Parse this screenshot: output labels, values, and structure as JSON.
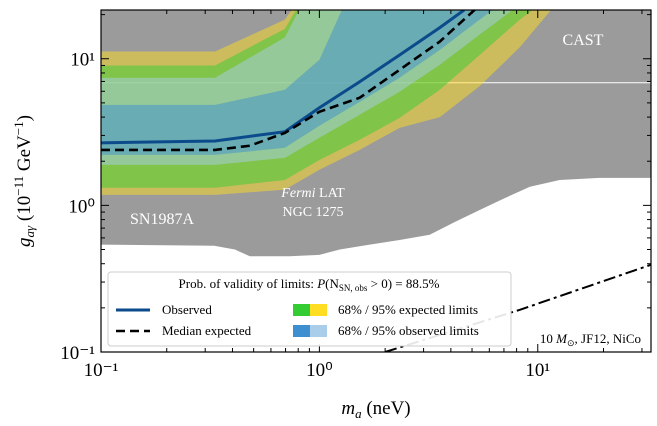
{
  "chart_data": {
    "type": "line",
    "xscale": "log",
    "yscale": "log",
    "xlim": [
      0.1,
      33
    ],
    "ylim": [
      0.1,
      21.5
    ],
    "xticks": [
      {
        "value": 0.1,
        "label": "10⁻¹"
      },
      {
        "value": 1,
        "label": "10⁰"
      },
      {
        "value": 10,
        "label": "10¹"
      }
    ],
    "yticks": [
      {
        "value": 0.1,
        "label": "10⁻¹"
      },
      {
        "value": 1,
        "label": "10⁰"
      },
      {
        "value": 10,
        "label": "10¹"
      }
    ],
    "xminorticks": [
      0.2,
      0.3,
      0.4,
      0.5,
      0.6,
      0.7,
      0.8,
      0.9,
      2,
      3,
      4,
      5,
      6,
      7,
      8,
      9,
      20,
      30
    ],
    "yminorticks": [
      0.2,
      0.3,
      0.4,
      0.5,
      0.6,
      0.7,
      0.8,
      0.9,
      2,
      3,
      4,
      5,
      6,
      7,
      8,
      9,
      20
    ],
    "xlabel": [
      "m",
      "a",
      " (neV)"
    ],
    "ylabel": [
      "g",
      "aγ",
      " (10",
      "−11",
      " GeV",
      "−1",
      ")"
    ],
    "excluded": {
      "color": "#9b9b9b",
      "x": [
        0.1,
        33,
        33,
        19.2,
        12.6,
        9.2,
        7.06,
        5.42,
        4.17,
        3.2,
        2.33,
        1.7,
        1.24,
        1.0,
        0.73,
        0.48,
        0.41,
        0.33,
        0.1
      ],
      "y": [
        21.5,
        21.5,
        1.54,
        1.54,
        1.49,
        1.34,
        1.12,
        0.93,
        0.77,
        0.63,
        0.58,
        0.54,
        0.5,
        0.46,
        0.45,
        0.45,
        0.5,
        0.53,
        0.54
      ]
    },
    "boundary": {
      "color": "#ffffff",
      "x": [
        0.1,
        33
      ],
      "y": [
        6.86,
        6.86
      ]
    },
    "region_labels": {
      "cast": "CAST",
      "sn": "SN1987A",
      "fermi": [
        "Fermi",
        " LAT"
      ],
      "fermi_source": "NGC 1275"
    },
    "band_x": [
      0.1,
      0.333,
      0.695,
      1.0,
      1.53,
      2.33,
      3.56,
      5.42,
      8.28,
      12.6
    ],
    "band_alpha": 0.5,
    "band_groups": [
      {
        "name": "68% / 95% expected limits",
        "colors": [
          "#33cc33",
          "#ffdd22"
        ],
        "bands": [
          {
            "lower": [
              1.18,
              1.18,
              1.28,
              1.75,
              2.39,
              3.38,
              4.0,
              6.5,
              12,
              25.3
            ],
            "upper": [
              11.2,
              11.2,
              18.5,
              40,
              40,
              40,
              40,
              40,
              40,
              40
            ]
          },
          {
            "lower": [
              1.32,
              1.32,
              1.49,
              2.04,
              2.8,
              3.95,
              6.14,
              10.6,
              18.5,
              29.6
            ],
            "upper": [
              9.0,
              9.0,
              16,
              40,
              40,
              40,
              40,
              40,
              40,
              40
            ]
          }
        ]
      },
      {
        "name": "68% / 95% observed limits",
        "colors": [
          "#3d8fd0",
          "#aacde9"
        ],
        "bands": [
          {
            "lower": [
              1.89,
              1.89,
              2.11,
              2.89,
              4.15,
              5.96,
              9.1,
              14.6,
              23.4,
              34.6
            ],
            "upper": [
              7.42,
              7.42,
              14,
              40,
              40,
              40,
              40,
              40,
              40,
              40
            ]
          },
          {
            "lower": [
              2.21,
              2.21,
              2.47,
              3.49,
              5.08,
              7.42,
              11.5,
              18.5,
              29.6,
              39.3
            ],
            "upper": [
              4.85,
              4.85,
              6.14,
              9.84,
              40,
              40,
              40,
              40,
              40,
              40
            ]
          }
        ]
      }
    ],
    "series": [
      {
        "name": "Observed",
        "color": "#0b4a8b",
        "style": "solid",
        "x": [
          0.1,
          0.333,
          0.695,
          1.0,
          1.53,
          2.33,
          3.56,
          4.6
        ],
        "values": [
          2.67,
          2.75,
          3.18,
          4.63,
          6.97,
          10.6,
          16.3,
          21.5
        ]
      },
      {
        "name": "Median expected",
        "color": "#000000",
        "style": "dashed",
        "x": [
          0.1,
          0.333,
          0.48,
          0.695,
          1.0,
          1.53,
          2.33,
          3.56,
          5.15
        ],
        "values": [
          2.39,
          2.39,
          2.55,
          3.12,
          4.35,
          5.42,
          8.41,
          13.1,
          21.6
        ]
      }
    ],
    "projection": {
      "color": "#000000",
      "style": "dashdot",
      "x": [
        2.0,
        8.28,
        32.9
      ],
      "values": [
        0.1,
        0.194,
        0.393
      ]
    },
    "annotation": [
      "10 ",
      "M",
      "⊙",
      ", JF12, NiCo"
    ],
    "legend_title": [
      "Prob. of validity of limits: ",
      "P",
      "(N",
      "SN, obs",
      " > 0) = 88.5%"
    ],
    "legend": "lower left"
  }
}
